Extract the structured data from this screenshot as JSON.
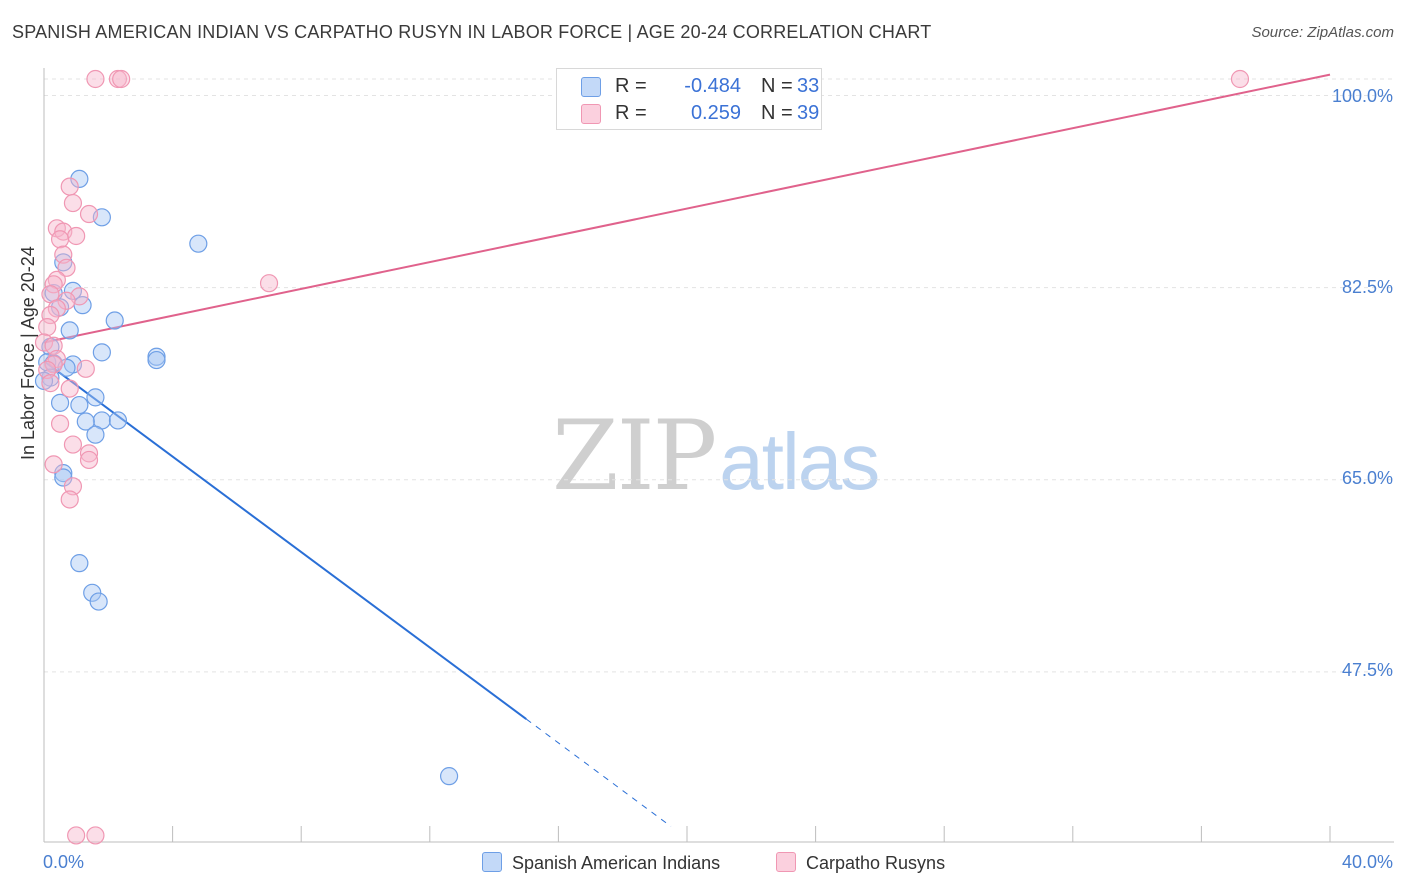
{
  "header": {
    "title": "SPANISH AMERICAN INDIAN VS CARPATHO RUSYN IN LABOR FORCE | AGE 20-24 CORRELATION CHART",
    "source": "Source: ZipAtlas.com"
  },
  "watermark": {
    "part1": "ZIP",
    "part2": "atlas"
  },
  "legend": {
    "rows": [
      {
        "r_label": "R = ",
        "r_value": "-0.484",
        "n_label": "N = ",
        "n_value": "33",
        "color": "#a8c8f5"
      },
      {
        "r_label": "R = ",
        "r_value": "0.259",
        "n_label": "N = ",
        "n_value": "39",
        "color": "#f7b6cb"
      }
    ]
  },
  "bottom_legend": {
    "series1": "Spanish American Indians",
    "series2": "Carpatho Rusyns"
  },
  "chart_data": {
    "type": "scatter",
    "title": "SPANISH AMERICAN INDIAN VS CARPATHO RUSYN IN LABOR FORCE | AGE 20-24 CORRELATION CHART",
    "xlabel": "",
    "ylabel": "In Labor Force | Age 20-24",
    "xlim": [
      0,
      40
    ],
    "ylim": [
      32,
      101.5
    ],
    "x_tick_labels": [
      "0.0%",
      "40.0%"
    ],
    "y_ticks": [
      47.5,
      65.0,
      82.5,
      100.0
    ],
    "y_tick_labels": [
      "47.5%",
      "65.0%",
      "82.5%",
      "100.0%"
    ],
    "grid": true,
    "series": [
      {
        "name": "Spanish American Indians",
        "color": "#6e9fe6",
        "fill": "#a8c8f5",
        "line_color": "#2a6fd6",
        "R": -0.484,
        "N": 33,
        "trend": {
          "x0": 0,
          "y0": 75.8,
          "x1": 15.0,
          "y1": 43.2,
          "dash_to_x": 19.5
        },
        "points": [
          [
            1.1,
            92.4
          ],
          [
            1.8,
            88.9
          ],
          [
            4.8,
            86.5
          ],
          [
            0.6,
            84.8
          ],
          [
            0.3,
            82.0
          ],
          [
            0.9,
            82.2
          ],
          [
            0.5,
            80.7
          ],
          [
            1.2,
            80.9
          ],
          [
            2.2,
            79.5
          ],
          [
            0.8,
            78.6
          ],
          [
            0.2,
            77.1
          ],
          [
            1.8,
            76.6
          ],
          [
            3.5,
            76.2
          ],
          [
            3.5,
            75.9
          ],
          [
            0.1,
            75.7
          ],
          [
            0.3,
            75.6
          ],
          [
            0.9,
            75.5
          ],
          [
            0.7,
            75.2
          ],
          [
            0.2,
            74.3
          ],
          [
            1.6,
            72.5
          ],
          [
            0.5,
            72.0
          ],
          [
            1.1,
            71.8
          ],
          [
            1.8,
            70.4
          ],
          [
            1.3,
            70.3
          ],
          [
            2.3,
            70.4
          ],
          [
            1.6,
            69.1
          ],
          [
            0.6,
            65.6
          ],
          [
            0.6,
            65.2
          ],
          [
            1.1,
            57.4
          ],
          [
            1.5,
            54.7
          ],
          [
            1.7,
            53.9
          ],
          [
            12.6,
            38.0
          ],
          [
            0.0,
            74.0
          ]
        ]
      },
      {
        "name": "Carpatho Rusyns",
        "color": "#f097b3",
        "fill": "#f7b6cb",
        "line_color": "#e0628c",
        "R": 0.259,
        "N": 39,
        "trend": {
          "x0": 0,
          "y0": 77.5,
          "x1": 40,
          "y1": 101.9
        },
        "points": [
          [
            1.6,
            101.5
          ],
          [
            2.3,
            101.5
          ],
          [
            2.4,
            101.5
          ],
          [
            37.2,
            101.5
          ],
          [
            0.8,
            91.7
          ],
          [
            0.9,
            90.2
          ],
          [
            1.4,
            89.2
          ],
          [
            0.4,
            87.9
          ],
          [
            0.6,
            87.6
          ],
          [
            1.0,
            87.2
          ],
          [
            0.5,
            86.9
          ],
          [
            0.6,
            85.5
          ],
          [
            0.7,
            84.3
          ],
          [
            0.4,
            83.2
          ],
          [
            0.3,
            82.8
          ],
          [
            0.2,
            81.9
          ],
          [
            1.1,
            81.7
          ],
          [
            0.7,
            81.3
          ],
          [
            0.4,
            80.6
          ],
          [
            7.0,
            82.9
          ],
          [
            0.2,
            80.0
          ],
          [
            0.1,
            78.9
          ],
          [
            0.0,
            77.5
          ],
          [
            0.3,
            77.2
          ],
          [
            0.4,
            76.0
          ],
          [
            0.3,
            75.5
          ],
          [
            0.1,
            75.0
          ],
          [
            1.3,
            75.1
          ],
          [
            0.8,
            73.3
          ],
          [
            0.5,
            70.1
          ],
          [
            0.9,
            68.2
          ],
          [
            1.4,
            67.4
          ],
          [
            1.4,
            66.8
          ],
          [
            0.3,
            66.4
          ],
          [
            0.9,
            64.4
          ],
          [
            0.8,
            63.2
          ],
          [
            1.0,
            32.6
          ],
          [
            1.6,
            32.6
          ],
          [
            0.2,
            73.8
          ]
        ]
      }
    ]
  }
}
